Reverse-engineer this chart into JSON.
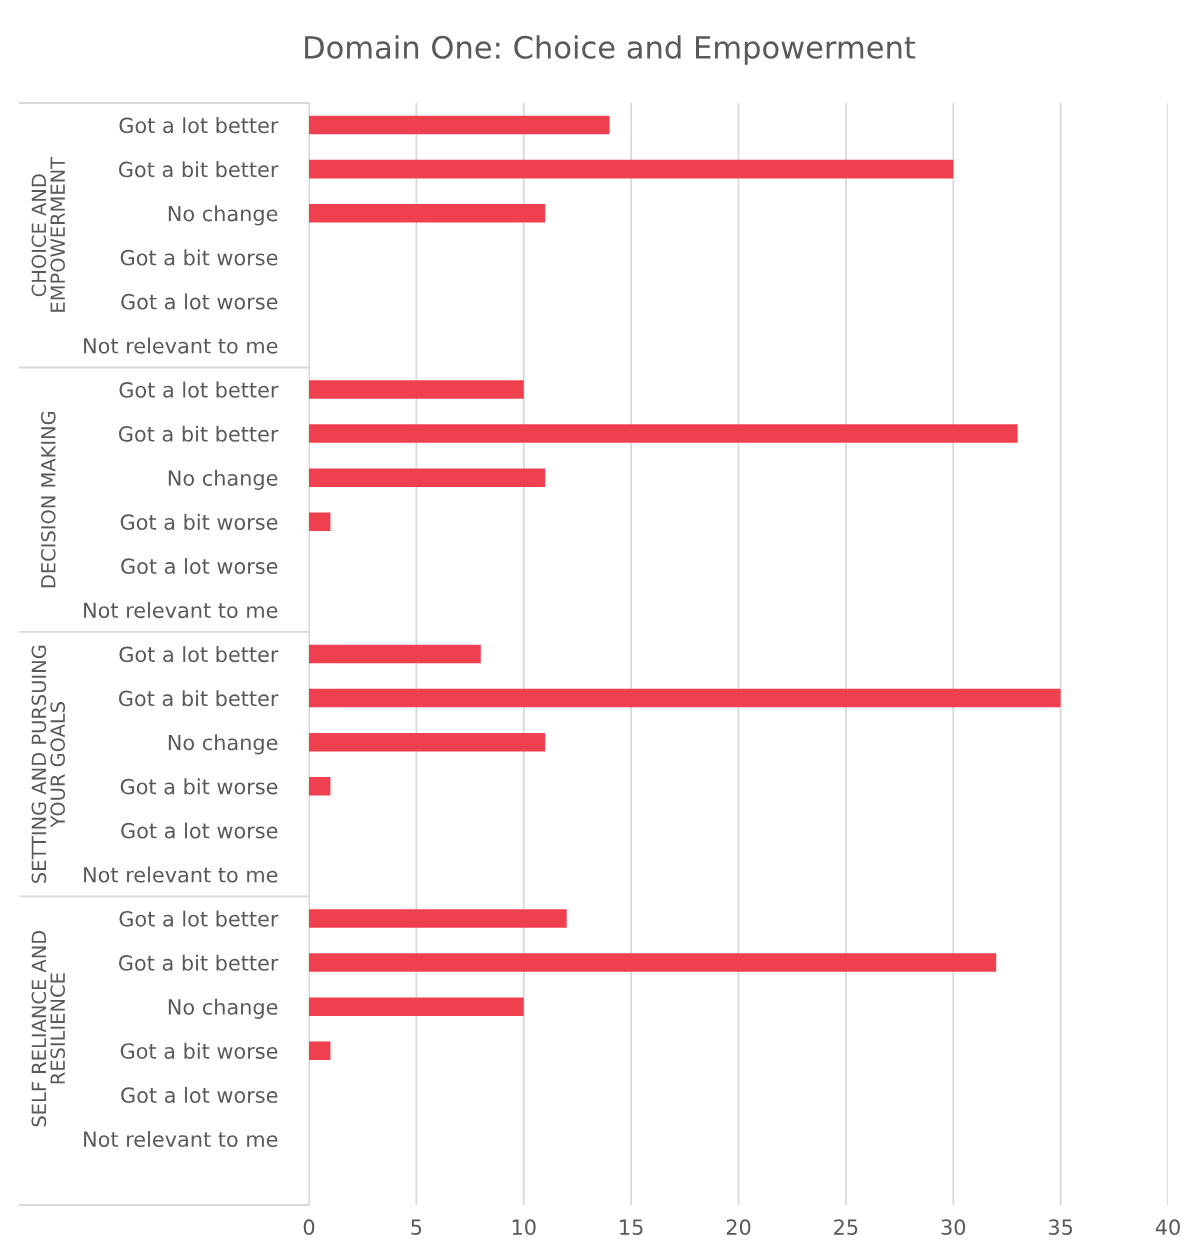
{
  "chart_data": {
    "type": "bar",
    "orientation": "horizontal",
    "title": "Domain One: Choice and Empowerment",
    "categories": [
      "Got a lot better",
      "Got a bit better",
      "No change",
      "Got a bit worse",
      "Got a lot worse",
      "Not relevant to me",
      "Got a lot better",
      "Got a bit better",
      "No change",
      "Got a bit worse",
      "Got a lot worse",
      "Not relevant to me",
      "Got a lot better",
      "Got a bit better",
      "No change",
      "Got a bit worse",
      "Got a lot worse",
      "Not relevant to me",
      "Got a lot better",
      "Got a bit better",
      "No change",
      "Got a bit worse",
      "Got a lot worse",
      "Not relevant to me"
    ],
    "values": [
      14,
      30,
      11,
      0,
      0,
      0,
      10,
      33,
      11,
      1,
      0,
      0,
      8,
      35,
      11,
      1,
      0,
      0,
      12,
      32,
      10,
      1,
      0,
      0
    ],
    "color": "#ef4050",
    "annotations": [
      "CHOICE AND\nEMPOWERMENT",
      "DECISION MAKING",
      "SETTING AND PURSUING\nYOUR GOALS",
      "SELF RELIANCE AND\nRESILIENCE"
    ],
    "xlim": [
      0,
      40
    ],
    "xticks": [
      0,
      5,
      10,
      15,
      20,
      25,
      30,
      35,
      40
    ],
    "grid": "x",
    "legend": false
  }
}
